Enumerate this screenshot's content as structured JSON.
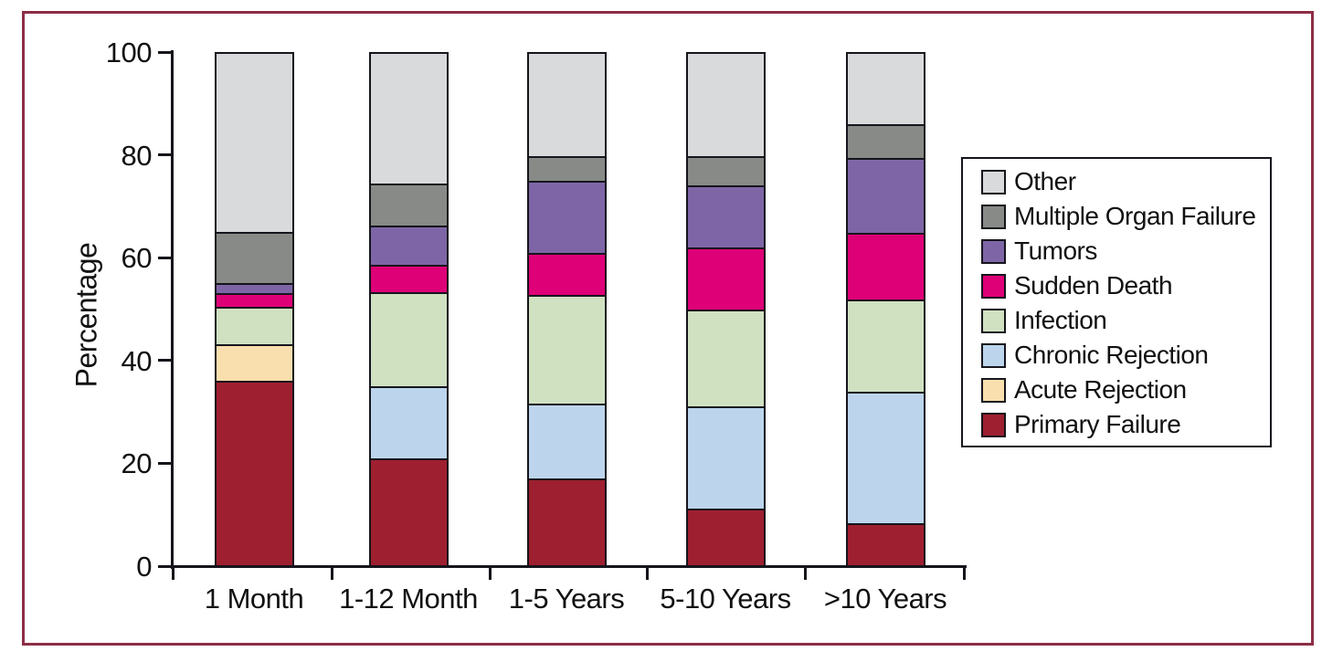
{
  "figure": {
    "border_color": "#8D2E46",
    "background_color": "#FFFFFF",
    "axis_color": "#15151C"
  },
  "chart_data": {
    "type": "bar",
    "stacked": true,
    "title": "",
    "xlabel": "",
    "ylabel": "Percentage",
    "ylim": [
      0,
      100
    ],
    "yticks": [
      0,
      20,
      40,
      60,
      80,
      100
    ],
    "grid": false,
    "legend_position": "right",
    "categories": [
      "1 Month",
      "1-12 Month",
      "1-5 Years",
      "5-10 Years",
      ">10 Years"
    ],
    "series": [
      {
        "name": "Primary Failure",
        "color": "#9E1F30",
        "values": [
          36.5,
          21,
          17,
          11,
          8
        ]
      },
      {
        "name": "Acute Rejection",
        "color": "#FADFAE",
        "values": [
          7,
          0,
          0,
          0,
          0
        ]
      },
      {
        "name": "Chronic Rejection",
        "color": "#BDD5EC",
        "values": [
          0,
          14,
          14.5,
          20,
          26
        ]
      },
      {
        "name": "Infection",
        "color": "#D0E1C2",
        "values": [
          7,
          18.5,
          21.5,
          19,
          18
        ]
      },
      {
        "name": "Sudden Death",
        "color": "#DE0077",
        "values": [
          2.5,
          5,
          8,
          12,
          13
        ]
      },
      {
        "name": "Tumors",
        "color": "#7E66A6",
        "values": [
          1.5,
          7.5,
          14,
          12,
          14.5
        ]
      },
      {
        "name": "Multiple Organ Failure",
        "color": "#888A87",
        "values": [
          10,
          8,
          4.5,
          5.5,
          6.5
        ]
      },
      {
        "name": "Other",
        "color": "#D9DADC",
        "values": [
          35.5,
          26,
          20.5,
          20.5,
          14
        ]
      }
    ],
    "legend_order": [
      "Other",
      "Multiple Organ Failure",
      "Tumors",
      "Sudden Death",
      "Infection",
      "Chronic Rejection",
      "Acute Rejection",
      "Primary Failure"
    ]
  }
}
